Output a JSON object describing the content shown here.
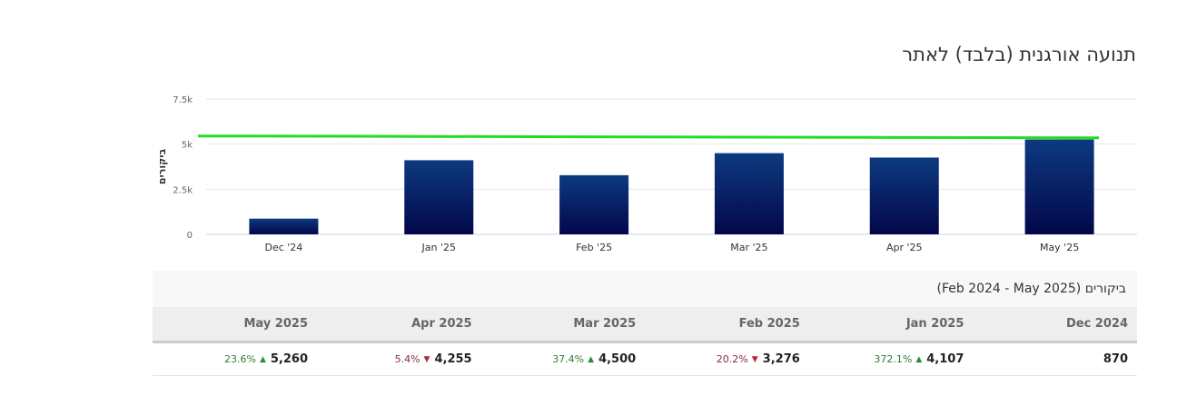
{
  "title": "תנועה אורגנית (בלבד) לאתר",
  "chart_data": {
    "type": "bar",
    "categories": [
      "Dec '24",
      "Jan '25",
      "Feb '25",
      "Mar '25",
      "Apr '25",
      "May '25"
    ],
    "values": [
      870,
      4107,
      3276,
      4500,
      4255,
      5260
    ],
    "ylabel": "ביקורים",
    "ylim": [
      0,
      7500
    ],
    "yticks": [
      "0",
      "2.5k",
      "5k",
      "7.5k"
    ],
    "ytick_values": [
      0,
      2500,
      5000,
      7500
    ],
    "reference_line": 5450,
    "bar_color_top": "#0d3a80",
    "bar_color_bottom": "#03074a",
    "line_color": "#22dd22",
    "grid": true
  },
  "table": {
    "caption": "ביקורים (Feb 2024 - May 2025)",
    "columns": [
      "Dec 2024",
      "Jan 2025",
      "Feb 2025",
      "Mar 2025",
      "Apr 2025",
      "May 2025"
    ],
    "rows": [
      {
        "value": "870",
        "change": "",
        "dir": ""
      },
      {
        "value": "4,107",
        "change": "372.1%",
        "dir": "up"
      },
      {
        "value": "3,276",
        "change": "20.2%",
        "dir": "down"
      },
      {
        "value": "4,500",
        "change": "37.4%",
        "dir": "up"
      },
      {
        "value": "4,255",
        "change": "5.4%",
        "dir": "down"
      },
      {
        "value": "5,260",
        "change": "23.6%",
        "dir": "up"
      }
    ]
  }
}
